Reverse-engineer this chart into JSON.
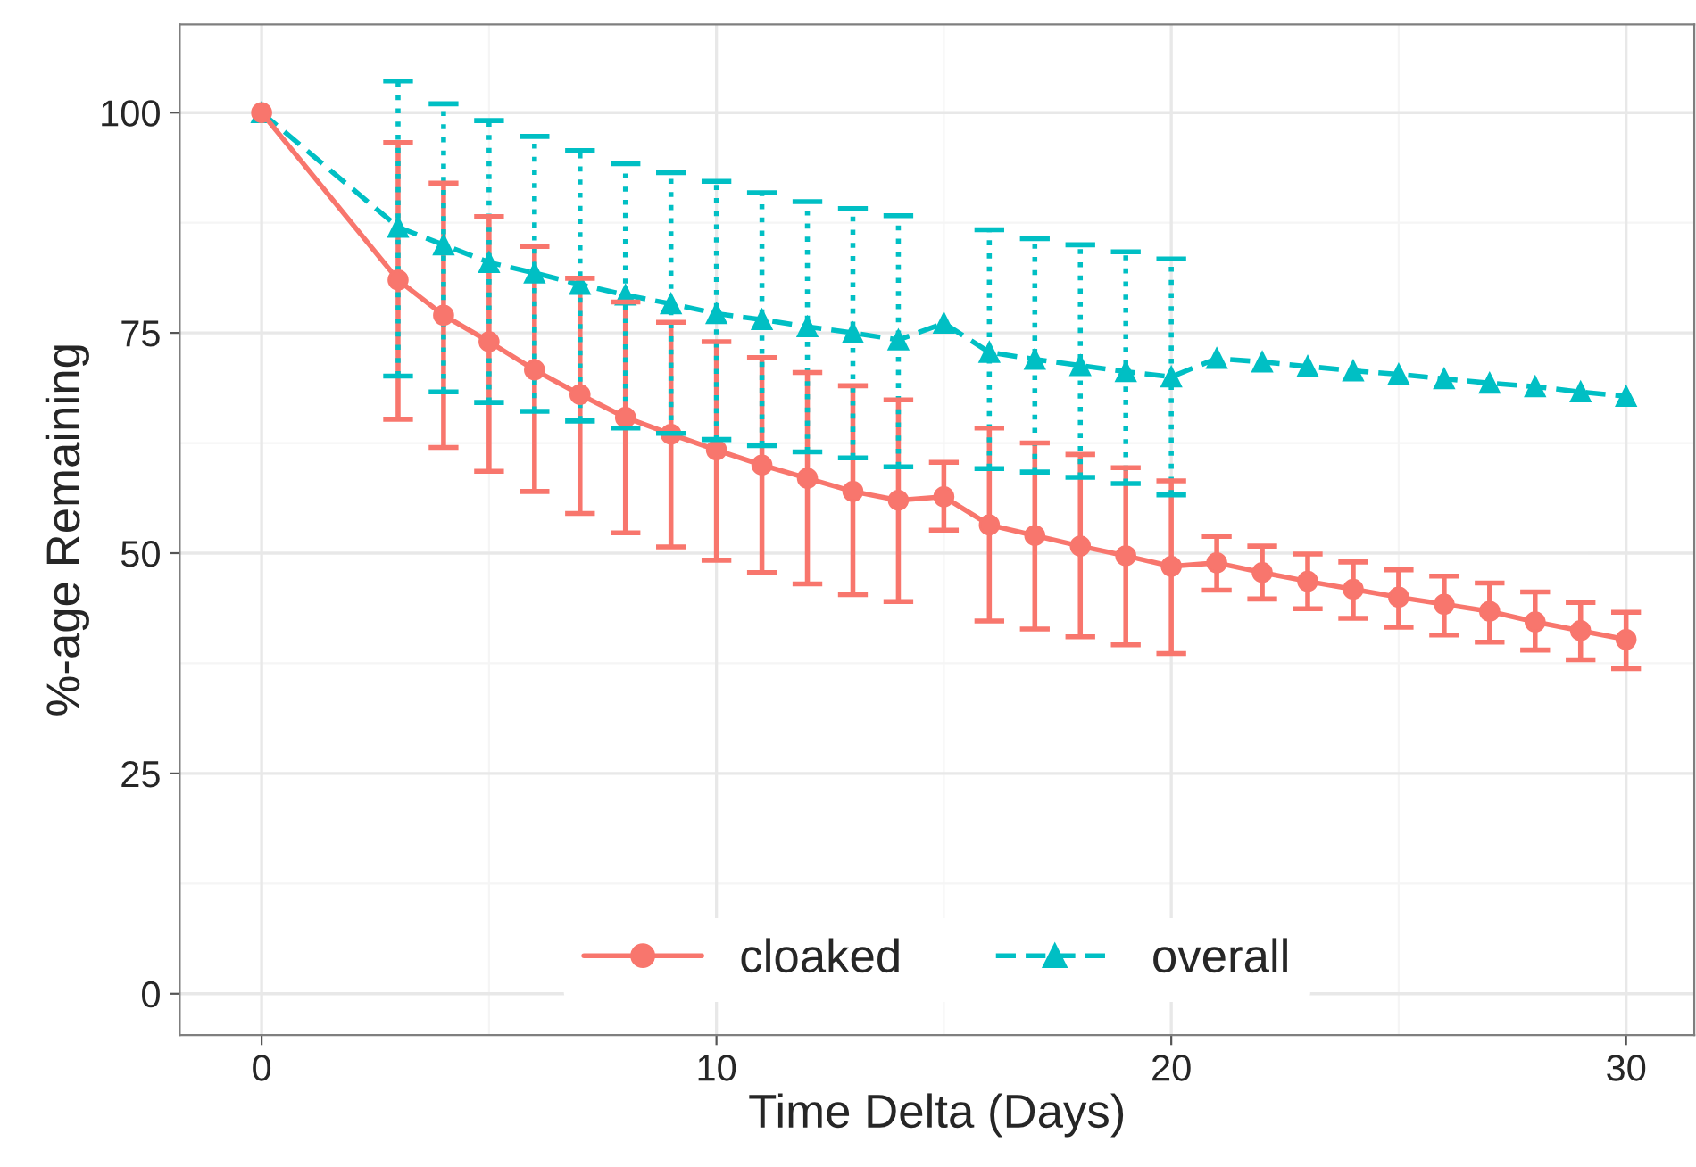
{
  "chart_data": {
    "type": "line",
    "xlabel": "Time Delta (Days)",
    "ylabel": "%-age Remaining",
    "x": [
      0,
      3,
      4,
      5,
      6,
      7,
      8,
      9,
      10,
      11,
      12,
      13,
      14,
      15,
      16,
      17,
      18,
      19,
      20,
      21,
      22,
      23,
      24,
      25,
      26,
      27,
      28,
      29,
      30
    ],
    "series": [
      {
        "name": "cloaked",
        "color": "#f8766d",
        "marker": "circle",
        "line_style": "solid",
        "values": [
          100,
          81,
          77,
          74,
          70.8,
          68,
          65.4,
          63.5,
          61.7,
          60,
          58.5,
          57,
          56,
          56.4,
          53.2,
          52,
          50.8,
          49.7,
          48.5,
          48.9,
          47.8,
          46.8,
          45.9,
          45,
          44.2,
          43.4,
          42.2,
          41.2,
          40.2
        ],
        "errors": [
          null,
          [
            65.2,
            96.6
          ],
          [
            62,
            92
          ],
          [
            59.3,
            88.2
          ],
          [
            57,
            84.8
          ],
          [
            54.5,
            81.2
          ],
          [
            52.3,
            78.5
          ],
          [
            50.7,
            76.2
          ],
          [
            49.2,
            74
          ],
          [
            47.8,
            72.2
          ],
          [
            46.5,
            70.5
          ],
          [
            45.3,
            69
          ],
          [
            44.5,
            67.4
          ],
          [
            52.6,
            60.3
          ],
          [
            42.3,
            64.2
          ],
          [
            41.4,
            62.5
          ],
          [
            40.5,
            61.2
          ],
          [
            39.6,
            59.7
          ],
          [
            38.6,
            58.2
          ],
          [
            45.8,
            51.9
          ],
          [
            44.8,
            50.8
          ],
          [
            43.7,
            49.9
          ],
          [
            42.6,
            49
          ],
          [
            41.6,
            48.1
          ],
          [
            40.7,
            47.4
          ],
          [
            39.9,
            46.6
          ],
          [
            39,
            45.6
          ],
          [
            37.9,
            44.4
          ],
          [
            36.9,
            43.3
          ]
        ]
      },
      {
        "name": "overall",
        "color": "#00bfc4",
        "marker": "triangle",
        "line_style": "dashed",
        "values": [
          100,
          87,
          85,
          83,
          81.8,
          80.5,
          79.3,
          78.3,
          77.2,
          76.5,
          75.7,
          75,
          74.2,
          76.1,
          72.8,
          72,
          71.3,
          70.6,
          70,
          72.1,
          71.7,
          71.2,
          70.7,
          70.3,
          69.8,
          69.3,
          68.9,
          68.3,
          67.8
        ],
        "errors": [
          null,
          [
            70.1,
            103.6
          ],
          [
            68.3,
            101
          ],
          [
            67.1,
            99.1
          ],
          [
            66.1,
            97.3
          ],
          [
            65,
            95.7
          ],
          [
            64.2,
            94.2
          ],
          [
            63.6,
            93.2
          ],
          [
            62.9,
            92.2
          ],
          [
            62.2,
            90.9
          ],
          [
            61.5,
            89.9
          ],
          [
            60.8,
            89.1
          ],
          [
            59.8,
            88.3
          ],
          null,
          [
            59.6,
            86.7
          ],
          [
            59.2,
            85.7
          ],
          [
            58.6,
            85
          ],
          [
            57.9,
            84.2
          ],
          [
            56.6,
            83.4
          ],
          null,
          null,
          null,
          null,
          null,
          null,
          null,
          null,
          null,
          null
        ]
      }
    ],
    "xlim": [
      -1.8,
      31.5
    ],
    "xticks": [
      0,
      10,
      20,
      30
    ],
    "ylim": [
      -4.7,
      110
    ],
    "yticks": [
      0,
      25,
      50,
      75,
      100
    ],
    "grid": true,
    "legend": "bottom"
  }
}
